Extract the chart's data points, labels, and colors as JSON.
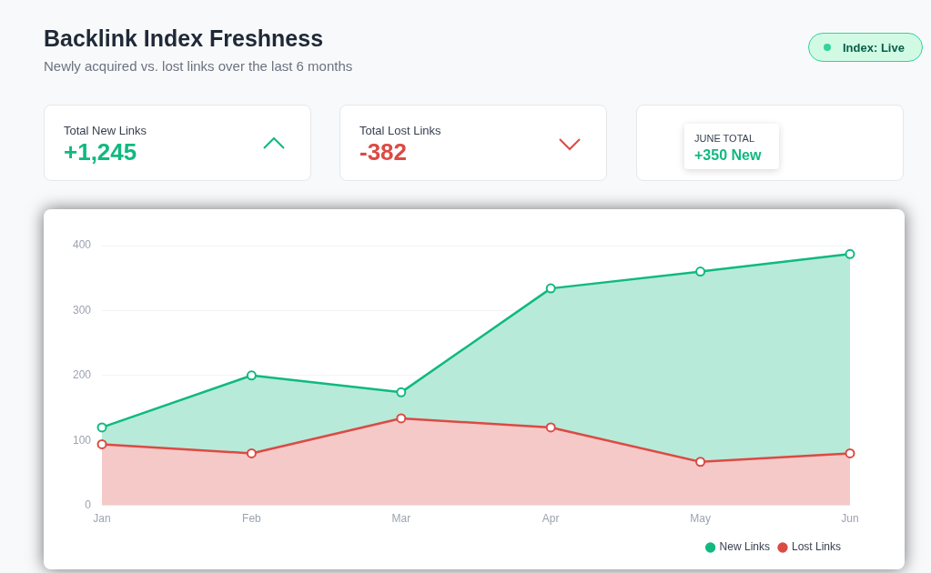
{
  "chart_data": {
    "type": "area",
    "title": "Backlink Index Freshness",
    "subtitle": "Newly acquired vs. lost links over the last 6 months",
    "categories": [
      "Jan",
      "Feb",
      "Mar",
      "Apr",
      "May",
      "Jun"
    ],
    "series": [
      {
        "name": "New Links",
        "color": "#10b981",
        "values": [
          120,
          200,
          174,
          334,
          360,
          387
        ]
      },
      {
        "name": "Lost Links",
        "color": "#dc4a44",
        "values": [
          94,
          80,
          134,
          120,
          67,
          80
        ]
      }
    ],
    "ylim": [
      0,
      400
    ],
    "yticks": [
      0,
      100,
      200,
      300,
      400
    ],
    "grid": "y",
    "legend": "bottom right",
    "marker": "circle",
    "annotations": [
      "Index: Live",
      "Total New Links",
      "+1,245",
      "Total Lost Links",
      "-382",
      "JUNE TOTAL",
      "+350 New"
    ]
  }
}
